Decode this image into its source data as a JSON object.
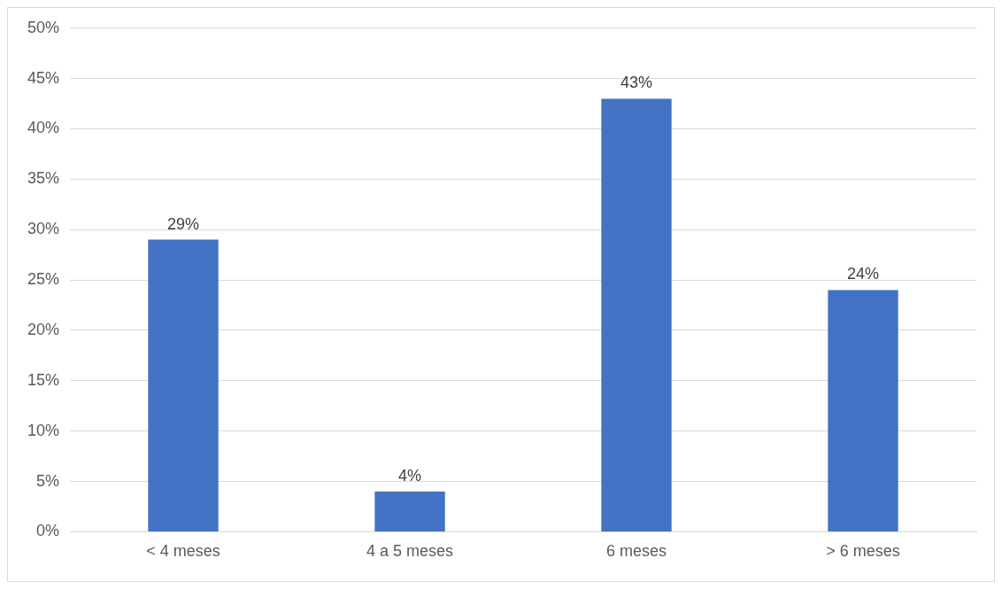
{
  "chart_data": {
    "type": "bar",
    "categories": [
      "< 4 meses",
      "4 a 5 meses",
      "6 meses",
      "> 6 meses"
    ],
    "values": [
      29,
      4,
      43,
      24
    ],
    "color": "#4472c4",
    "value_labels": [
      "29%",
      "4%",
      "43%",
      "24%"
    ],
    "ylim": [
      0,
      50
    ],
    "yticks": [
      {
        "value": 0,
        "label": "0%"
      },
      {
        "value": 5,
        "label": "5%"
      },
      {
        "value": 10,
        "label": "10%"
      },
      {
        "value": 15,
        "label": "15%"
      },
      {
        "value": 20,
        "label": "20%"
      },
      {
        "value": 25,
        "label": "25%"
      },
      {
        "value": 30,
        "label": "30%"
      },
      {
        "value": 35,
        "label": "35%"
      },
      {
        "value": 40,
        "label": "40%"
      },
      {
        "value": 45,
        "label": "45%"
      },
      {
        "value": 50,
        "label": "50%"
      }
    ],
    "grid": "y"
  }
}
